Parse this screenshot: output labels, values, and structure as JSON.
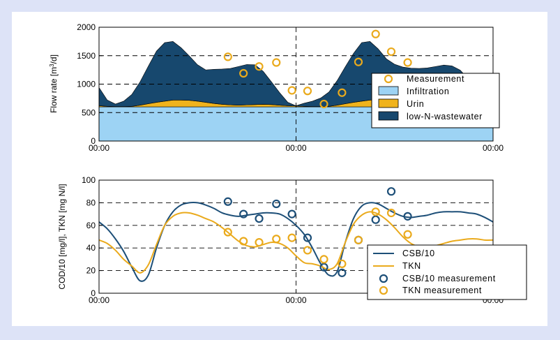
{
  "colors": {
    "infiltration": "#9dd3f4",
    "urin": "#f0b31c",
    "wastewater": "#17486e",
    "measurement": "#eaaa1c",
    "csb": "#1d4f78",
    "tkn": "#eaaa1c"
  },
  "chart_data": [
    {
      "type": "area",
      "xlabel": "",
      "ylabel_pre": "Flow rate [m",
      "ylabel_sup": "3",
      "ylabel_post": "/d]",
      "ylim": [
        0,
        2000
      ],
      "xlim": [
        0,
        48
      ],
      "yticks": [
        "0",
        "500",
        "1000",
        "1500",
        "2000"
      ],
      "ytick_values": [
        0,
        500,
        1000,
        1500,
        2000
      ],
      "xticks": [
        "00:00",
        "00:00",
        "00:00"
      ],
      "xtick_values": [
        0,
        24,
        48
      ],
      "grid": "dashed",
      "legend_position": "right",
      "x": [
        0,
        1,
        2,
        3,
        4,
        5,
        6,
        7,
        8,
        9,
        10,
        11,
        12,
        13,
        14,
        15,
        16,
        17,
        18,
        19,
        20,
        21,
        22,
        23,
        24,
        25,
        26,
        27,
        28,
        29,
        30,
        31,
        32,
        33,
        34,
        35,
        36,
        37,
        38,
        39,
        40,
        41,
        42,
        43,
        44,
        45,
        46,
        47,
        48
      ],
      "series": [
        {
          "name": "Infiltration",
          "values": [
            600,
            600,
            600,
            600,
            600,
            600,
            600,
            600,
            600,
            600,
            600,
            600,
            600,
            600,
            600,
            600,
            600,
            600,
            600,
            600,
            600,
            600,
            600,
            600,
            600,
            600,
            600,
            600,
            600,
            600,
            600,
            600,
            600,
            600,
            600,
            600,
            600,
            600,
            600,
            600,
            600,
            600,
            600,
            600,
            600,
            600,
            600,
            600,
            600
          ]
        },
        {
          "name": "Urin",
          "values": [
            20,
            10,
            5,
            5,
            10,
            30,
            55,
            80,
            100,
            120,
            120,
            115,
            100,
            80,
            60,
            45,
            35,
            30,
            35,
            40,
            45,
            40,
            30,
            20,
            15,
            10,
            5,
            5,
            10,
            30,
            55,
            80,
            100,
            120,
            120,
            115,
            100,
            80,
            60,
            45,
            35,
            30,
            35,
            40,
            45,
            40,
            30,
            25,
            20
          ]
        },
        {
          "name": "low-N-wastewater",
          "values": [
            320,
            110,
            45,
            95,
            210,
            410,
            660,
            900,
            1030,
            1030,
            920,
            780,
            640,
            570,
            600,
            620,
            640,
            680,
            710,
            700,
            580,
            400,
            220,
            60,
            5,
            55,
            95,
            150,
            250,
            430,
            650,
            860,
            1030,
            1030,
            900,
            730,
            650,
            620,
            620,
            630,
            650,
            680,
            700,
            680,
            600,
            450,
            300,
            200,
            170
          ]
        }
      ],
      "scatter": {
        "name": "Measurement",
        "x": [
          15.7,
          17.6,
          19.5,
          21.6,
          23.5,
          25.4,
          27.4,
          29.6,
          31.6,
          33.7,
          35.6,
          37.6
        ],
        "y": [
          1480,
          1190,
          1310,
          1380,
          890,
          880,
          650,
          850,
          1390,
          1880,
          1570,
          1380
        ]
      },
      "legend": [
        "Measurement",
        "Infiltration",
        "Urin",
        "low-N-wastewater"
      ]
    },
    {
      "type": "line",
      "xlabel": "",
      "ylabel": "COD/10 [mg/l], TKN [mg N/l]",
      "ylim": [
        0,
        100
      ],
      "xlim": [
        0,
        48
      ],
      "yticks": [
        "0",
        "20",
        "40",
        "60",
        "80",
        "100"
      ],
      "ytick_values": [
        0,
        20,
        40,
        60,
        80,
        100
      ],
      "xticks": [
        "00:00",
        "00:00",
        "00:00"
      ],
      "xtick_values": [
        0,
        24,
        48
      ],
      "grid": "dashed",
      "legend_position": "bottom-right",
      "series": [
        {
          "name": "CSB/10",
          "x": [
            0,
            1,
            2,
            3,
            4,
            5,
            6,
            7,
            8,
            9,
            10,
            11,
            12,
            13,
            14,
            15,
            16,
            17,
            18,
            19,
            20,
            21,
            22,
            23,
            24,
            25,
            26,
            27,
            28,
            29,
            30,
            31,
            32,
            33,
            34,
            35,
            36,
            37,
            38,
            39,
            40,
            41,
            42,
            43,
            44,
            45,
            46,
            47,
            48
          ],
          "values": [
            63,
            57,
            48,
            37,
            23,
            11,
            16,
            40,
            60,
            72,
            78,
            80,
            80,
            78,
            75,
            71,
            69,
            68,
            69,
            70,
            71,
            71,
            70,
            66,
            60,
            52,
            40,
            26,
            16,
            19,
            45,
            66,
            77,
            80,
            79,
            75,
            71,
            68,
            67,
            68,
            69,
            71,
            72,
            72,
            72,
            71,
            70,
            67,
            63
          ]
        },
        {
          "name": "TKN",
          "x": [
            0,
            1,
            2,
            3,
            4,
            5,
            6,
            7,
            8,
            9,
            10,
            11,
            12,
            13,
            14,
            15,
            16,
            17,
            18,
            19,
            20,
            21,
            22,
            23,
            24,
            25,
            26,
            27,
            28,
            29,
            30,
            31,
            32,
            33,
            34,
            35,
            36,
            37,
            38,
            39,
            40,
            41,
            42,
            43,
            44,
            45,
            46,
            47,
            48
          ],
          "values": [
            47,
            44,
            38,
            30,
            24,
            18,
            25,
            43,
            60,
            68,
            71,
            71,
            69,
            66,
            63,
            58,
            52,
            46,
            42,
            41,
            43,
            45,
            44,
            40,
            33,
            27,
            26,
            24,
            21,
            26,
            45,
            61,
            69,
            72,
            70,
            65,
            58,
            50,
            44,
            41,
            40,
            42,
            44,
            46,
            47,
            48,
            48,
            47,
            47
          ]
        }
      ],
      "scatter": [
        {
          "name": "CSB/10 measurement",
          "x": [
            15.7,
            17.6,
            19.5,
            21.6,
            23.5,
            25.4,
            27.4,
            29.6,
            31.6,
            33.7,
            35.6,
            37.6
          ],
          "y": [
            81,
            70,
            66,
            79,
            70,
            49,
            23,
            18,
            47,
            65,
            90,
            68
          ]
        },
        {
          "name": "TKN measurement",
          "x": [
            15.7,
            17.6,
            19.5,
            21.6,
            23.5,
            25.4,
            27.4,
            29.6,
            31.6,
            33.7,
            35.6,
            37.6
          ],
          "y": [
            54,
            46,
            45,
            48,
            49,
            38,
            30,
            26,
            47,
            72,
            71,
            52
          ]
        }
      ],
      "legend": [
        "CSB/10",
        "TKN",
        "CSB/10 measurement",
        "TKN measurement"
      ]
    }
  ]
}
